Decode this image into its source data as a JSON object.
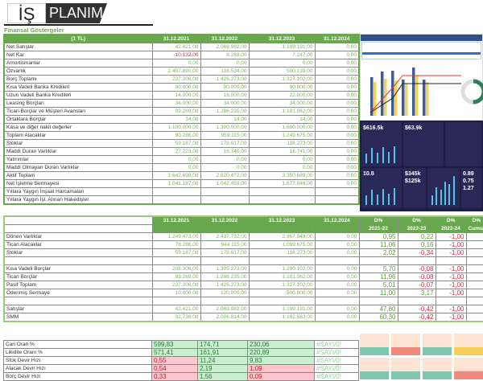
{
  "logo": {
    "part1": "İŞ",
    "part2": "PLANIM"
  },
  "section_title": "Finansal Göstergeler",
  "table1": {
    "headers": [
      "(1 TL)",
      "31.12.2021",
      "31.12.2022",
      "31.12.2023",
      "31.12.2024"
    ],
    "rows": [
      [
        "Net Satışlar",
        "42.421,00",
        "2.069.982,00",
        "1.199.191,00",
        "0,00"
      ],
      [
        "Net Kar",
        "-10.132,00",
        "8.268,00",
        "7.247,00",
        "0,00"
      ],
      [
        "Amortismanlar",
        "0,00",
        "0,00",
        "0,00",
        "0,00"
      ],
      [
        "Özvarlık",
        "1.407.890,00",
        "116.534,00",
        "500.139,00",
        "0,00"
      ],
      [
        "Borç Toplamı",
        "237.306,00",
        "1.426.273,00",
        "1.327.102,00",
        "0,00"
      ],
      [
        "Kısa Vadeli Banka Kredileri",
        "90.000,00",
        "90.000,00",
        "90.000,00",
        "0,00"
      ],
      [
        "Uzun Vadeli Banka Kredileri",
        "14.000,00",
        "16.000,00",
        "22.000,00",
        "0,00"
      ],
      [
        "Leasing Borçları",
        "34.000,00",
        "34.000,00",
        "34.000,00",
        "0,00"
      ],
      [
        "Ticari Borçlar ve Müşteri Avansları",
        "99.269,00",
        "1.286.235,00",
        "1.181.062,00",
        "0,00"
      ],
      [
        "Ortaklara Borçlar",
        "14,00",
        "14,00",
        "14,00",
        "0,00"
      ],
      [
        "Kasa ve diğer nakit  değerler",
        "1.100.000,00",
        "1.300.000,00",
        "1.600.000,00",
        "0,00"
      ],
      [
        "Toplam Alacaklar",
        "90.286,00",
        "959.115,00",
        "1.249.675,00",
        "0,00"
      ],
      [
        "Stoklar",
        "59.187,00",
        "178.617,00",
        "118.273,00",
        "0,00"
      ],
      [
        "Maddi Duran Varlıklar",
        "27.223,00",
        "16.740,00",
        "16.741,00",
        "0,00"
      ],
      [
        "Yatırımlar",
        "0,00",
        "0,00",
        "0,00",
        "0,00"
      ],
      [
        "Maddi Olmayan Duran Varlıklar",
        "0,00",
        "0,00",
        "0,00",
        "0,00"
      ],
      [
        "Aktif Toplam",
        "1.642.696,00",
        "2.820.472,00",
        "3.350.689,00",
        "0,00"
      ],
      [
        "Net İşletme Sermayesi",
        "1.041.167,00",
        "1.042.459,00",
        "1.677.846,00",
        "0,00"
      ],
      [
        "Yıllara Yaygın İnşaat Harcamaları",
        "",
        "",
        "",
        ""
      ],
      [
        "Yıllara Yaygın İşl. Alınan Hakedişler",
        "",
        "",
        "",
        ""
      ]
    ]
  },
  "table2": {
    "headers": [
      "",
      "31.12.2021",
      "31.12.2022",
      "31.12.2023",
      "31.12.2024",
      "D%",
      "D%",
      "D%",
      "D%"
    ],
    "subheaders": [
      "",
      "",
      "",
      "",
      "",
      "2021-22",
      "2022-23",
      "2023-24",
      "Cumulative"
    ],
    "rows": [
      [
        "Dönen Varlıklar",
        "1.249.473,00",
        "2.437.732,00",
        "2.967.948,00",
        "0,00",
        "0,95",
        "0,22",
        "-1,00",
        ""
      ],
      [
        "Ticari Alacaklar",
        "78.286,00",
        "944.115,00",
        "1.099.675,00",
        "0,00",
        "11,06",
        "0,16",
        "-1,00",
        ""
      ],
      [
        "Stoklar",
        "59.187,00",
        "178.617,00",
        "118.273,00",
        "0,00",
        "2,02",
        "-0,34",
        "-1,00",
        ""
      ],
      [
        "",
        "",
        "",
        "",
        "",
        "",
        "",
        "",
        ""
      ],
      [
        "Kısa Vadeli Borçlar",
        "208.306,00",
        "1.395.273,00",
        "1.290.102,00",
        "0,00",
        "5,70",
        "-0,08",
        "-1,00",
        ""
      ],
      [
        "Ticari Borçlar",
        "99.269,00",
        "1.286.235,00",
        "1.181.062,00",
        "0,00",
        "11,96",
        "-0,08",
        "-1,00",
        ""
      ],
      [
        "Pasif Toplam",
        "237.306,00",
        "1.426.273,00",
        "1.327.102,00",
        "0,00",
        "5,01",
        "-0,07",
        "-1,00",
        ""
      ],
      [
        "Ödenmiş Sermaye",
        "10.000,00",
        "120.000,00",
        "500.000,00",
        "0,00",
        "11,00",
        "3,17",
        "-1,00",
        ""
      ],
      [
        "",
        "",
        "",
        "",
        "",
        "",
        "",
        "",
        ""
      ],
      [
        "Satışlar",
        "42.421,00",
        "2.069.982,00",
        "1.199.191,00",
        "0,00",
        "47,80",
        "-0,42",
        "-1,00",
        ""
      ],
      [
        "SMM",
        "32.736,00",
        "2.006.814,00",
        "1.162.583,00",
        "0,00",
        "60,30",
        "-0,42",
        "-1,00",
        ""
      ]
    ]
  },
  "table3": {
    "rows": [
      {
        "label": "Cari Oran %",
        "values": [
          "599,83",
          "174,71",
          "230,06"
        ],
        "status": [
          "good",
          "good",
          "good"
        ],
        "error": "#SAYI/0!"
      },
      {
        "label": "Likidite Oranı %",
        "values": [
          "571,41",
          "161,91",
          "220,89"
        ],
        "status": [
          "good",
          "good",
          "good"
        ],
        "error": "#SAYI/0!"
      },
      {
        "label": "Stok Devir Hızı",
        "values": [
          "0,55",
          "11,24",
          "9,83"
        ],
        "status": [
          "bad",
          "good",
          "good"
        ],
        "error": "#SAYI/0!"
      },
      {
        "label": "Alacak Devir Hızı",
        "values": [
          "0,54",
          "2,19",
          "1,09"
        ],
        "status": [
          "bad",
          "good",
          "bad"
        ],
        "error": "#SAYI/0!"
      },
      {
        "label": "Borç Devir Hızı",
        "values": [
          "0,33",
          "1,56",
          "0,09"
        ],
        "status": [
          "bad",
          "good",
          "bad"
        ],
        "error": "#SAYI/0!"
      }
    ]
  },
  "dashboard": {
    "cards": [
      "$616.5k",
      "$63.9k",
      "10.8",
      "$345k",
      "$125k",
      "0.89",
      "0.75",
      "1.27"
    ]
  },
  "colors": {
    "header_green": "#6aa84f",
    "value_green": "#7cb35a",
    "negative": "#e0243a",
    "good_bg": "#c9efd0",
    "bad_bg": "#fdc7cd",
    "dash_bg": "#1f1d45"
  }
}
